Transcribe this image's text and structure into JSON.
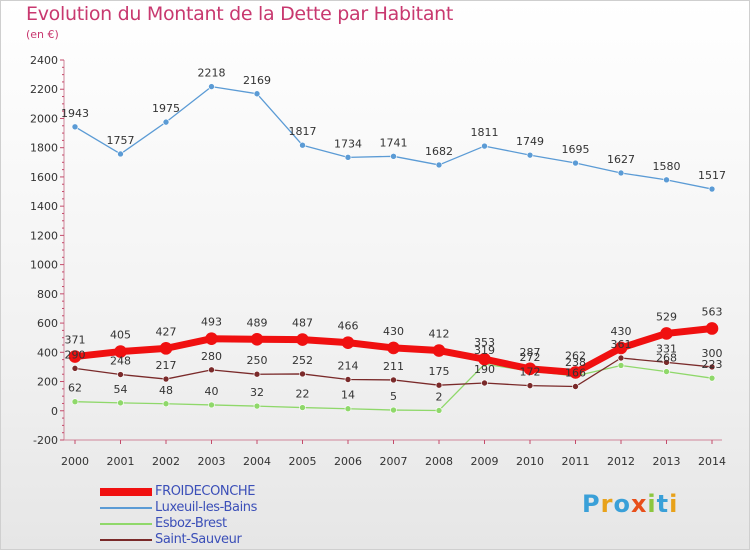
{
  "title": "Evolution du Montant de la Dette par Habitant",
  "subtitle": "(en €)",
  "logo_text": "Proxiti",
  "colors": {
    "title": "#c8386f",
    "FROIDECONCHE": "#f01010",
    "Luxeuil-les-Bains": "#5b9bd5",
    "Esboz-Brest": "#8fd86a",
    "Saint-Sauveur": "#7a2a2a"
  },
  "chart_data": {
    "type": "line",
    "x": [
      "2000",
      "2001",
      "2002",
      "2003",
      "2004",
      "2005",
      "2006",
      "2007",
      "2008",
      "2009",
      "2010",
      "2011",
      "2012",
      "2013",
      "2014"
    ],
    "yticks": [
      "2400",
      "2200",
      "2000",
      "1800",
      "1600",
      "1400",
      "1200",
      "1000",
      "800",
      "600",
      "400",
      "200",
      "0",
      "-200"
    ],
    "ylim": [
      -200,
      2400
    ],
    "grid": false,
    "legend_position": "bottom-left",
    "series": [
      {
        "name": "Luxeuil-les-Bains",
        "values": [
          1943,
          1757,
          1975,
          2218,
          2169,
          1817,
          1734,
          1741,
          1682,
          1811,
          1749,
          1695,
          1627,
          1580,
          1517
        ],
        "labels": [
          "1943",
          "1757",
          "1975",
          "2218",
          "2169",
          "1817",
          "1734",
          "1741",
          "1682",
          "1811",
          "1749",
          "1695",
          "1627",
          "1580",
          "1517"
        ]
      },
      {
        "name": "Esboz-Brest",
        "values": [
          62,
          54,
          48,
          40,
          32,
          22,
          14,
          5,
          2,
          319,
          272,
          238,
          310,
          268,
          223
        ],
        "labels": [
          "62",
          "54",
          "48",
          "40",
          "32",
          "22",
          "14",
          "5",
          "2",
          "319",
          "272",
          "238",
          "",
          "268",
          "223"
        ]
      },
      {
        "name": "Saint-Sauveur",
        "values": [
          290,
          248,
          217,
          280,
          250,
          252,
          214,
          211,
          175,
          190,
          172,
          166,
          361,
          331,
          300
        ],
        "labels": [
          "290",
          "248",
          "217",
          "280",
          "250",
          "252",
          "214",
          "211",
          "175",
          "190",
          "172",
          "166",
          "361",
          "331",
          "300"
        ]
      },
      {
        "name": "FROIDECONCHE",
        "values": [
          371,
          405,
          427,
          493,
          489,
          487,
          466,
          430,
          412,
          353,
          287,
          262,
          430,
          529,
          563
        ],
        "labels": [
          "371",
          "405",
          "427",
          "493",
          "489",
          "487",
          "466",
          "430",
          "412",
          "353",
          "287",
          "262",
          "430",
          "529",
          "563"
        ]
      }
    ],
    "legend": [
      "FROIDECONCHE",
      "Luxeuil-les-Bains",
      "Esboz-Brest",
      "Saint-Sauveur"
    ]
  }
}
